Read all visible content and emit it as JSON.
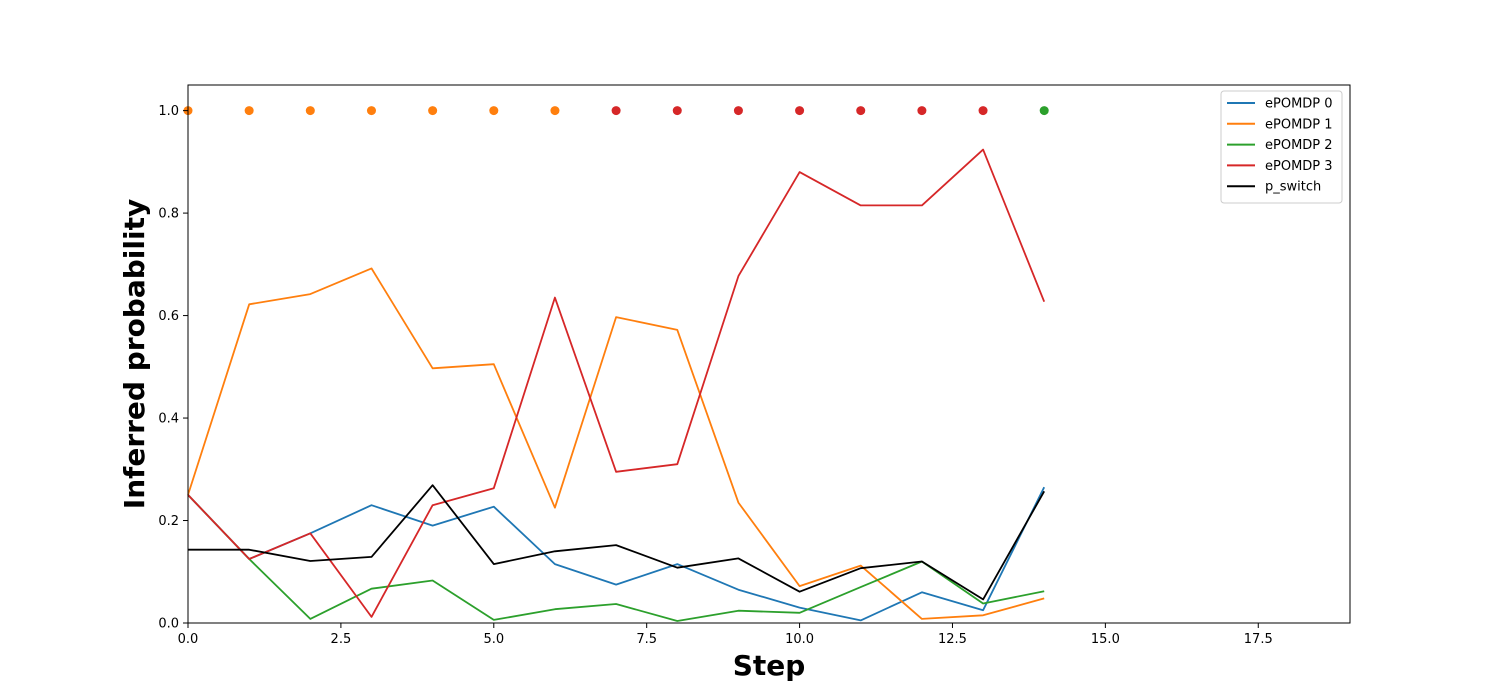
{
  "chart_data": {
    "type": "line",
    "title": "",
    "xlabel": "Step",
    "ylabel": "Inferred probability",
    "xlim": [
      0,
      19
    ],
    "ylim": [
      0,
      1.05
    ],
    "xticks": [
      0,
      2.5,
      5,
      7.5,
      10,
      12.5,
      15,
      17.5
    ],
    "xtick_labels": [
      "0.0",
      "2.5",
      "5.0",
      "7.5",
      "10.0",
      "12.5",
      "15.0",
      "17.5"
    ],
    "yticks": [
      0,
      0.2,
      0.4,
      0.6,
      0.8,
      1.0
    ],
    "ytick_labels": [
      "0.0",
      "0.2",
      "0.4",
      "0.6",
      "0.8",
      "1.0"
    ],
    "grid": false,
    "legend_position": "top-right",
    "x": [
      0,
      1,
      2,
      3,
      4,
      5,
      6,
      7,
      8,
      9,
      10,
      11,
      12,
      13,
      14
    ],
    "series": [
      {
        "name": "ePOMDP 0",
        "color": "#1f77b4",
        "values": [
          0.25,
          0.125,
          0.175,
          0.23,
          0.19,
          0.227,
          0.115,
          0.075,
          0.115,
          0.065,
          0.03,
          0.005,
          0.06,
          0.025,
          0.265
        ]
      },
      {
        "name": "ePOMDP 1",
        "color": "#ff7f0e",
        "values": [
          0.25,
          0.622,
          0.642,
          0.692,
          0.497,
          0.505,
          0.225,
          0.597,
          0.572,
          0.235,
          0.072,
          0.112,
          0.008,
          0.015,
          0.048
        ]
      },
      {
        "name": "ePOMDP 2",
        "color": "#2ca02c",
        "values": [
          0.25,
          0.125,
          0.008,
          0.067,
          0.083,
          0.006,
          0.027,
          0.037,
          0.004,
          0.024,
          0.02,
          0.07,
          0.12,
          0.038,
          0.062
        ]
      },
      {
        "name": "ePOMDP 3",
        "color": "#d62728",
        "values": [
          0.25,
          0.125,
          0.175,
          0.012,
          0.23,
          0.263,
          0.635,
          0.295,
          0.31,
          0.677,
          0.88,
          0.815,
          0.815,
          0.924,
          0.627
        ]
      },
      {
        "name": "p_switch",
        "color": "#000000",
        "values": [
          0.143,
          0.143,
          0.121,
          0.129,
          0.269,
          0.115,
          0.14,
          0.152,
          0.108,
          0.126,
          0.061,
          0.107,
          0.12,
          0.046,
          0.257
        ]
      }
    ],
    "active_model_markers": {
      "y": 1.0,
      "x": [
        0,
        1,
        2,
        3,
        4,
        5,
        6,
        7,
        8,
        9,
        10,
        11,
        12,
        13,
        14
      ],
      "colors": [
        "#ff7f0e",
        "#ff7f0e",
        "#ff7f0e",
        "#ff7f0e",
        "#ff7f0e",
        "#ff7f0e",
        "#ff7f0e",
        "#d62728",
        "#d62728",
        "#d62728",
        "#d62728",
        "#d62728",
        "#d62728",
        "#d62728",
        "#2ca02c"
      ]
    }
  }
}
